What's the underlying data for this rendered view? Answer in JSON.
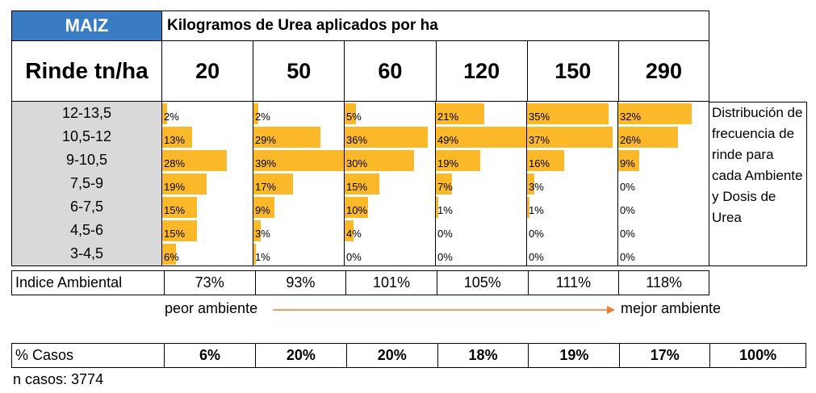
{
  "header": {
    "crop": "MAIZ",
    "title": "Kilogramos de Urea aplicados por ha",
    "rinde_label": "Rinde tn/ha"
  },
  "chart_data": {
    "type": "table",
    "title": "Kilogramos de Urea aplicados por ha",
    "doses": [
      "20",
      "50",
      "60",
      "120",
      "150",
      "290"
    ],
    "yield_classes": [
      "12-13,5",
      "10,5-12",
      "9-10,5",
      "7,5-9",
      "6-7,5",
      "4,5-6",
      "3-4,5"
    ],
    "series": [
      {
        "dose": "20",
        "values": [
          2,
          13,
          28,
          19,
          15,
          15,
          6
        ]
      },
      {
        "dose": "50",
        "values": [
          2,
          29,
          39,
          17,
          9,
          3,
          1
        ]
      },
      {
        "dose": "60",
        "values": [
          5,
          36,
          30,
          15,
          10,
          4,
          0
        ]
      },
      {
        "dose": "120",
        "values": [
          21,
          49,
          19,
          7,
          1,
          0,
          0
        ]
      },
      {
        "dose": "150",
        "values": [
          35,
          37,
          16,
          3,
          1,
          0,
          0
        ]
      },
      {
        "dose": "290",
        "values": [
          32,
          26,
          9,
          0,
          0,
          0,
          0
        ]
      }
    ],
    "unit": "%",
    "bar_color": "#fbb829",
    "bar_scale_max": 39
  },
  "note": "Distribución de frecuencia de rinde para cada Ambiente y Dosis de Urea",
  "ambiental": {
    "label": "Indice Ambiental",
    "values": [
      "73%",
      "93%",
      "101%",
      "105%",
      "111%",
      "118%"
    ]
  },
  "arrow": {
    "left": "peor ambiente",
    "right": "mejor ambiente",
    "color": "#ed7d31"
  },
  "casos": {
    "label": "% Casos",
    "values": [
      "6%",
      "20%",
      "20%",
      "18%",
      "19%",
      "17%"
    ],
    "total": "100%"
  },
  "n_casos": "n casos: 3774",
  "colors": {
    "crop_bg": "#3a7cc4",
    "label_bg": "#d9d9d9"
  }
}
